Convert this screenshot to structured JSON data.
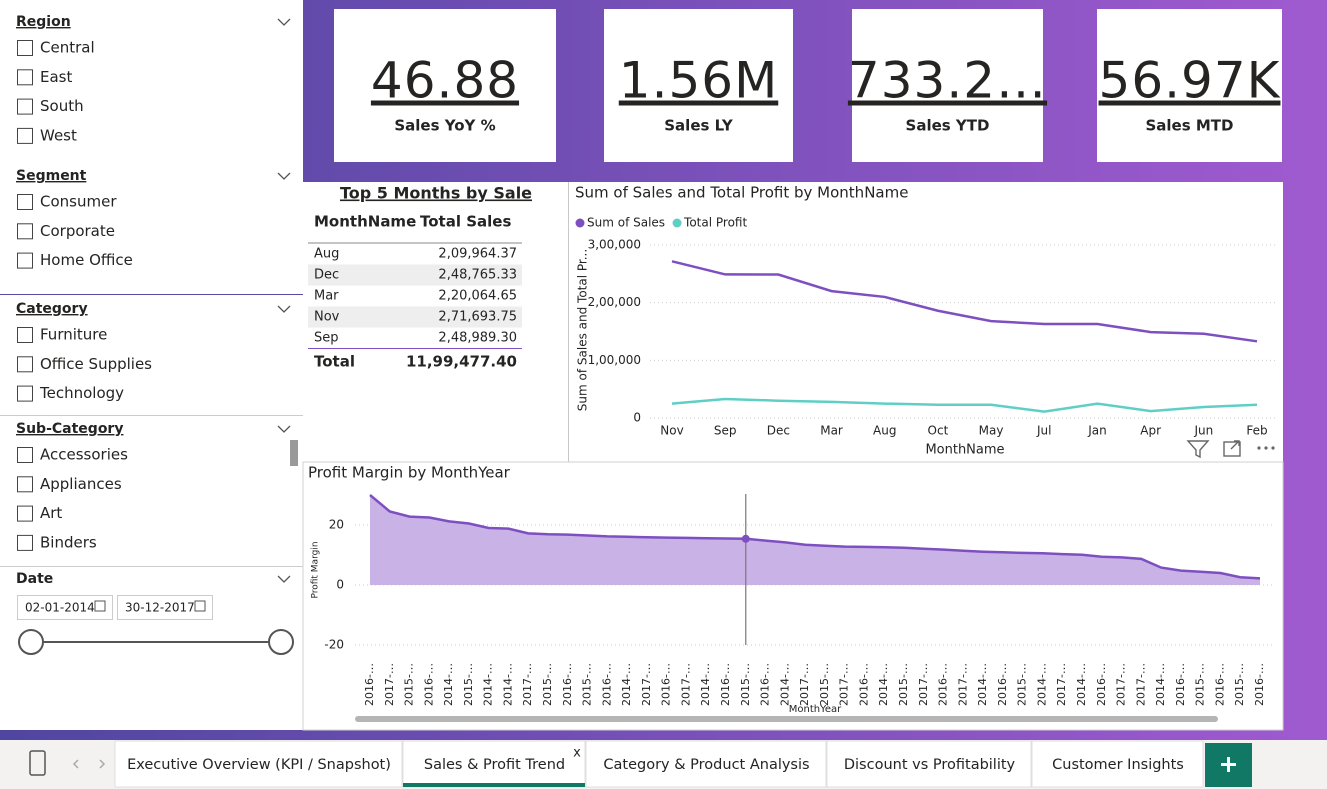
{
  "slicers": [
    {
      "title": "Region",
      "items": [
        "Central",
        "East",
        "South",
        "West"
      ]
    },
    {
      "title": "Segment",
      "items": [
        "Consumer",
        "Corporate",
        "Home Office"
      ]
    },
    {
      "title": "Category",
      "items": [
        "Furniture",
        "Office Supplies",
        "Technology"
      ]
    },
    {
      "title": "Sub-Category",
      "items": [
        "Accessories",
        "Appliances",
        "Art",
        "Binders"
      ]
    }
  ],
  "date_slicer": {
    "title": "Date",
    "start": "02-01-2014",
    "end": "30-12-2017"
  },
  "cards": [
    {
      "value": "46.88",
      "label": "Sales YoY %"
    },
    {
      "value": "1.56M",
      "label": "Sales LY"
    },
    {
      "value": "733.2…",
      "label": "Sales YTD"
    },
    {
      "value": "56.97K",
      "label": "Sales MTD"
    }
  ],
  "table": {
    "title": "Top 5 Months by Sale",
    "columns": [
      "MonthName",
      "Total Sales"
    ],
    "rows": [
      [
        "Aug",
        "2,09,964.37"
      ],
      [
        "Dec",
        "2,48,765.33"
      ],
      [
        "Mar",
        "2,20,064.65"
      ],
      [
        "Nov",
        "2,71,693.75"
      ],
      [
        "Sep",
        "2,48,989.30"
      ]
    ],
    "total": [
      "Total",
      "11,99,477.40"
    ]
  },
  "chart_data": [
    {
      "type": "line",
      "title": "Sum of Sales and Total Profit by MonthName",
      "x_label": "MonthName",
      "y_label": "Sum of Sales and Total Pr...",
      "categories": [
        "Nov",
        "Sep",
        "Dec",
        "Mar",
        "Aug",
        "Oct",
        "May",
        "Jul",
        "Jan",
        "Apr",
        "Jun",
        "Feb"
      ],
      "series": [
        {
          "name": "Sum of Sales",
          "color": "#7e4fc0",
          "values": [
            271694,
            248989,
            248765,
            220065,
            209964,
            186000,
            168000,
            163000,
            163000,
            149000,
            146000,
            133000
          ]
        },
        {
          "name": "Total Profit",
          "color": "#5fcfc6",
          "values": [
            25000,
            33000,
            30000,
            28000,
            25000,
            23000,
            23000,
            11000,
            25000,
            12000,
            19000,
            23000
          ]
        }
      ],
      "ylim": [
        0,
        300000
      ],
      "yticks": [
        0,
        {
          "value": 100000,
          "label": "1,00,000"
        },
        {
          "value": 200000,
          "label": "2,00,000"
        },
        {
          "value": 300000,
          "label": "3,00,000"
        }
      ],
      "grid": true
    },
    {
      "type": "area",
      "title": "Profit Margin by MonthYear",
      "x_label": "MonthYear",
      "y_label": "Profit Margin",
      "color": "#7e4fc0",
      "fill": "#c9b3e6",
      "categories": [
        "2016-…",
        "2017-…",
        "2015-…",
        "2016-…",
        "2014-…",
        "2015-…",
        "2014-…",
        "2014-…",
        "2017-…",
        "2015-…",
        "2016-…",
        "2015-…",
        "2016-…",
        "2014-…",
        "2017-…",
        "2016-…",
        "2017-…",
        "2014-…",
        "2016-…",
        "2015-…",
        "2016-…",
        "2014-…",
        "2017-…",
        "2015-…",
        "2017-…",
        "2016-…",
        "2014-…",
        "2015-…",
        "2017-…",
        "2016-…",
        "2017-…",
        "2014-…",
        "2016-…",
        "2015-…",
        "2014-…",
        "2017-…",
        "2014-…",
        "2016-…",
        "2017-…",
        "2017-…",
        "2014-…",
        "2016-…",
        "2015-…",
        "2016-…",
        "2015-…",
        "2016-…"
      ],
      "values": [
        30,
        24.5,
        22.8,
        22.5,
        21.2,
        20.5,
        19,
        18.8,
        17.2,
        16.9,
        16.8,
        16.5,
        16.2,
        16.1,
        15.9,
        15.8,
        15.7,
        15.6,
        15.5,
        15.4,
        14.8,
        14.2,
        13.4,
        13.1,
        12.8,
        12.7,
        12.6,
        12.4,
        12.1,
        11.8,
        11.4,
        11.1,
        10.9,
        10.7,
        10.6,
        10.3,
        10.1,
        9.4,
        9.2,
        8.7,
        5.8,
        4.8,
        4.4,
        4.0,
        2.6,
        2.2
      ],
      "selected": 19,
      "ylim": [
        -23,
        32
      ],
      "yticks": [
        -20,
        0,
        20
      ],
      "grid": true
    }
  ],
  "tabs": {
    "items": [
      "Executive Overview (KPI / Snapshot)",
      "Sales & Profit Trend",
      "Category & Product Analysis",
      "Discount vs Profitability",
      "Customer Insights"
    ],
    "active": 1,
    "close": "x"
  }
}
